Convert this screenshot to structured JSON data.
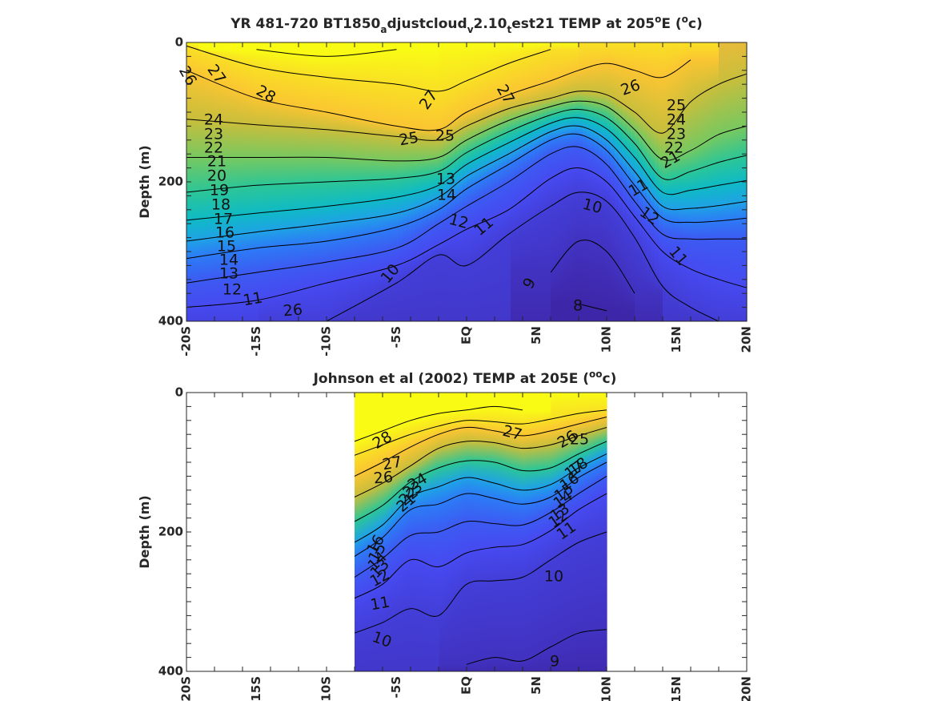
{
  "chart_data": [
    {
      "type": "heatmap",
      "subtype": "filled contour with labeled contour lines",
      "title": {
        "prefix": "YR 481-720 BT1850",
        "sub1": "a",
        "mid1": "djustcloud",
        "sub2": "v",
        "mid2": "2.10",
        "sub3": "t",
        "mid3": "est21 TEMP at 205",
        "sup1": "o",
        "mid4": "E (",
        "sup2": "o",
        "suffix": "c)"
      },
      "ylabel": "Depth (m)",
      "xlabel": "",
      "x_ticks": [
        "-20S",
        "-15S",
        "-10S",
        "-5S",
        "EQ",
        "5N",
        "10N",
        "15N",
        "20N"
      ],
      "y_ticks": [
        "0",
        "200",
        "400"
      ],
      "xlim": [
        -20,
        20
      ],
      "ylim": [
        400,
        0
      ],
      "y_reversed": true,
      "data_extent_x": [
        -20,
        20
      ],
      "colormap": "parula",
      "color_range": [
        8,
        28
      ],
      "grid": false,
      "contour_levels": [
        8,
        9,
        10,
        11,
        12,
        13,
        14,
        15,
        16,
        17,
        18,
        19,
        20,
        21,
        22,
        23,
        24,
        25,
        26,
        27,
        28
      ],
      "isotherm_depths": {
        "lat": [
          -20,
          -15,
          -10,
          -5,
          -2,
          0,
          3,
          6,
          8,
          10,
          12,
          14,
          16,
          18,
          20
        ],
        "T28": [
          null,
          10,
          20,
          10,
          null,
          null,
          null,
          null,
          null,
          null,
          null,
          null,
          null,
          null,
          null
        ],
        "T27": [
          5,
          35,
          50,
          60,
          70,
          55,
          30,
          10,
          null,
          null,
          null,
          null,
          null,
          null,
          null
        ],
        "T26": [
          40,
          80,
          100,
          120,
          125,
          100,
          75,
          55,
          40,
          30,
          40,
          50,
          25,
          null,
          null
        ],
        "T24": [
          110,
          118,
          125,
          135,
          140,
          120,
          95,
          80,
          70,
          75,
          100,
          130,
          85,
          60,
          45
        ],
        "T22": [
          165,
          165,
          165,
          170,
          165,
          140,
          112,
          92,
          84,
          92,
          125,
          168,
          155,
          132,
          120
        ],
        "T20": [
          215,
          205,
          200,
          195,
          185,
          158,
          128,
          104,
          96,
          108,
          145,
          195,
          185,
          172,
          162
        ],
        "T18": [
          255,
          245,
          235,
          222,
          205,
          175,
          144,
          116,
          108,
          124,
          165,
          215,
          212,
          205,
          198
        ],
        "T16": [
          285,
          272,
          260,
          245,
          222,
          192,
          160,
          128,
          120,
          140,
          185,
          235,
          238,
          234,
          228
        ],
        "T14": [
          310,
          295,
          285,
          265,
          240,
          210,
          175,
          140,
          132,
          155,
          205,
          252,
          258,
          256,
          252
        ],
        "T12": [
          345,
          330,
          315,
          295,
          260,
          235,
          200,
          160,
          150,
          175,
          228,
          275,
          282,
          282,
          282
        ],
        "T11": [
          380,
          370,
          345,
          320,
          290,
          268,
          240,
          195,
          180,
          200,
          250,
          300,
          325,
          340,
          352
        ],
        "T10": [
          null,
          null,
          400,
          345,
          305,
          320,
          275,
          235,
          215,
          228,
          280,
          350,
          380,
          400,
          null
        ],
        "T9": [
          null,
          null,
          null,
          null,
          null,
          null,
          null,
          330,
          285,
          300,
          360,
          null,
          null,
          null,
          null
        ],
        "T8": [
          null,
          null,
          null,
          null,
          null,
          null,
          null,
          null,
          375,
          385,
          null,
          null,
          null,
          null,
          null
        ]
      },
      "contour_labels": [
        "26",
        "27",
        "28",
        "27",
        "27",
        "26",
        "25",
        "25",
        "24",
        "23",
        "22",
        "21",
        "20",
        "19",
        "18",
        "17",
        "16",
        "15",
        "14",
        "13",
        "12",
        "11",
        "26",
        "25",
        "14",
        "13",
        "12",
        "11",
        "10",
        "10",
        "9",
        "8",
        "12",
        "11",
        "24",
        "23",
        "22",
        "21",
        "11"
      ]
    },
    {
      "type": "heatmap",
      "subtype": "filled contour with labeled contour lines",
      "title": {
        "prefix": "Johnson et al (2002) TEMP at 205",
        "sup1": "o",
        "mid1": "E (",
        "sup2": "o",
        "suffix": "c)"
      },
      "ylabel": "Depth (m)",
      "xlabel": "",
      "x_ticks": [
        "-20S",
        "-15S",
        "-10S",
        "-5S",
        "EQ",
        "5N",
        "10N",
        "15N",
        "20N"
      ],
      "y_ticks": [
        "0",
        "200",
        "400"
      ],
      "xlim": [
        -20,
        20
      ],
      "ylim": [
        400,
        0
      ],
      "y_reversed": true,
      "data_extent_x": [
        -8,
        10
      ],
      "colormap": "parula",
      "color_range": [
        8,
        28
      ],
      "grid": false,
      "contour_levels": [
        9,
        10,
        11,
        12,
        13,
        14,
        15,
        16,
        17,
        18,
        19,
        20,
        21,
        22,
        23,
        24,
        25,
        26,
        27,
        28
      ],
      "isotherm_depths": {
        "lat": [
          -8,
          -6,
          -4,
          -2,
          0,
          2,
          4,
          6,
          8,
          10
        ],
        "T28": [
          70,
          55,
          40,
          30,
          25,
          20,
          25,
          null,
          null,
          null
        ],
        "T27": [
          90,
          75,
          60,
          48,
          40,
          42,
          45,
          38,
          30,
          25
        ],
        "T26": [
          120,
          100,
          78,
          60,
          50,
          55,
          62,
          55,
          45,
          35
        ],
        "T24": [
          150,
          130,
          105,
          80,
          70,
          72,
          80,
          75,
          62,
          50
        ],
        "T20": [
          185,
          162,
          128,
          108,
          98,
          100,
          112,
          108,
          88,
          70
        ],
        "T16": [
          215,
          190,
          150,
          135,
          122,
          130,
          140,
          132,
          108,
          88
        ],
        "T14": [
          235,
          208,
          168,
          160,
          145,
          152,
          160,
          150,
          122,
          100
        ],
        "T12": [
          265,
          238,
          205,
          200,
          185,
          188,
          190,
          172,
          145,
          120
        ],
        "T11": [
          295,
          275,
          240,
          250,
          230,
          222,
          218,
          198,
          168,
          145
        ],
        "T10": [
          345,
          330,
          310,
          320,
          275,
          270,
          265,
          240,
          215,
          200
        ],
        "T9": [
          null,
          null,
          null,
          null,
          390,
          380,
          385,
          365,
          345,
          340
        ]
      },
      "contour_labels": [
        "28",
        "27",
        "26",
        "24",
        "23",
        "22",
        "21",
        "16",
        "15",
        "14",
        "13",
        "12",
        "11",
        "10",
        "27",
        "26",
        "25",
        "18",
        "17",
        "16",
        "15",
        "14",
        "13",
        "12",
        "11",
        "10",
        "9"
      ]
    }
  ]
}
